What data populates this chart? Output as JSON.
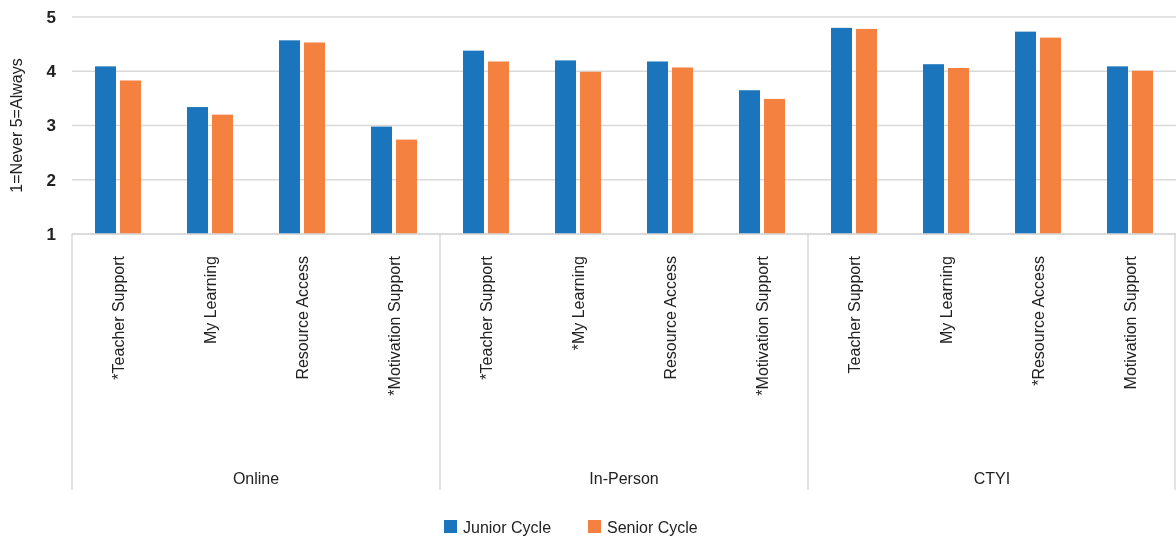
{
  "chart_data": {
    "type": "bar",
    "ylabel": "1=Never  5=Always",
    "categories": [
      "*Teacher Support",
      "My Learning",
      "Resource Access",
      "*Motivation Support",
      "*Teacher Support",
      "*My Learning",
      "Resource Access",
      "*Motivation Support",
      "Teacher Support",
      "My Learning",
      "*Resource Access",
      "Motivation Support"
    ],
    "series": [
      {
        "name": "Junior Cycle",
        "color": "#1b75bc",
        "values": [
          4.09,
          3.34,
          4.57,
          2.98,
          4.38,
          4.2,
          4.18,
          3.65,
          4.8,
          4.13,
          4.73,
          4.09
        ]
      },
      {
        "name": "Senior Cycle",
        "color": "#f58140",
        "values": [
          3.83,
          3.2,
          4.53,
          2.74,
          4.18,
          3.99,
          4.07,
          3.49,
          4.78,
          4.06,
          4.62,
          4.01
        ]
      }
    ],
    "annotations": [
      "Online",
      "In-Person",
      "CTYI"
    ],
    "ylim": [
      1,
      5
    ],
    "yticks": [
      1,
      2,
      3,
      4,
      5
    ],
    "grid": "y",
    "legend": "bottom"
  }
}
